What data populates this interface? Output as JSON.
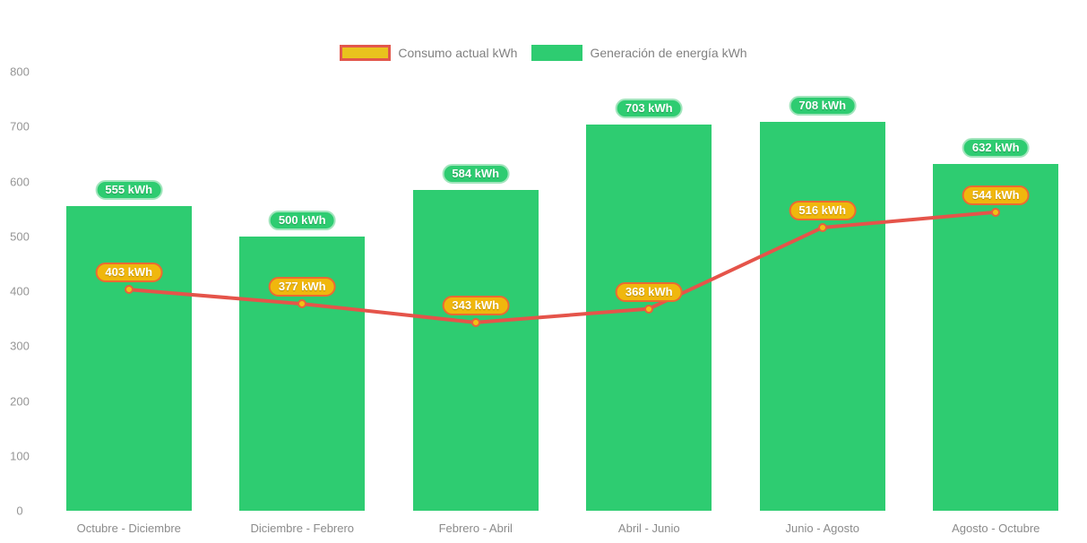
{
  "chart_data": {
    "type": "combo_bar_line",
    "title": "",
    "categories": [
      "Octubre - Diciembre",
      "Diciembre - Febrero",
      "Febrero - Abril",
      "Abril - Junio",
      "Junio - Agosto",
      "Agosto - Octubre"
    ],
    "series": [
      {
        "name": "Consumo actual kWh",
        "type": "line",
        "values": [
          403,
          377,
          343,
          368,
          516,
          544
        ],
        "color": "#e5544a",
        "point_fill": "#f2c114",
        "point_border": "#e8613c",
        "label_bg": "#f0b70d",
        "label_border": "#ea6a33",
        "label_text": "#ffffff",
        "swatch_fill": "#e9c31d",
        "swatch_border": "#e2574c"
      },
      {
        "name": "Generación de energía kWh",
        "type": "bar",
        "values": [
          555,
          500,
          584,
          703,
          708,
          632
        ],
        "color": "#2ecc71",
        "label_bg": "#2ecc71",
        "label_border": "#a2e5bd",
        "label_text": "#ffffff"
      }
    ],
    "value_suffix": " kWh",
    "ylim": [
      0,
      800
    ],
    "yticks": [
      800,
      700,
      600,
      500,
      400,
      300,
      200,
      100,
      0
    ],
    "xlabel": "",
    "ylabel": "",
    "grid": false,
    "legend_position": "top",
    "background": "#ffffff",
    "axis_text_color": "#959595"
  }
}
